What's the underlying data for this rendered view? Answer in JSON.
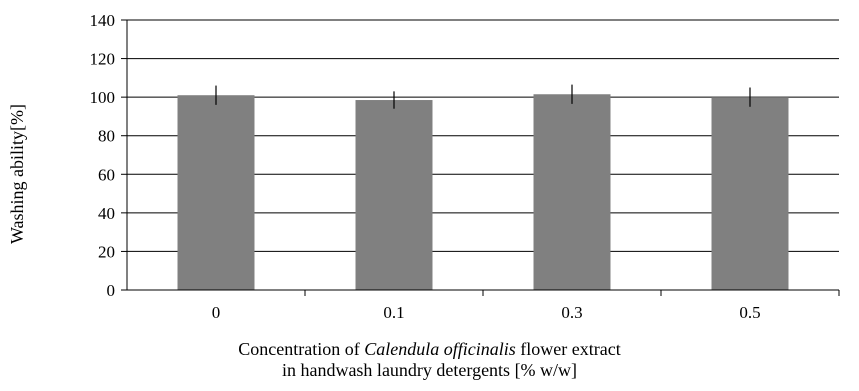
{
  "chart_data": {
    "type": "bar",
    "categories": [
      "0",
      "0.1",
      "0.3",
      "0.5"
    ],
    "values": [
      101,
      98.5,
      101.5,
      100
    ],
    "error": [
      5,
      4.5,
      5,
      5
    ],
    "ylim": [
      0,
      140
    ],
    "yticks": [
      0,
      20,
      40,
      60,
      80,
      100,
      120,
      140
    ],
    "ylabel": "Washing ability[%]",
    "xlabel": {
      "line1_prefix": "Concentration of ",
      "line1_italic": "Calendula officinalis",
      "line1_suffix": " flower extract",
      "line2": "in handwash laundry detergents [% w/w]"
    },
    "grid": true,
    "colors": {
      "bar": "#808080",
      "grid": "#000000",
      "error": "#000000"
    }
  }
}
